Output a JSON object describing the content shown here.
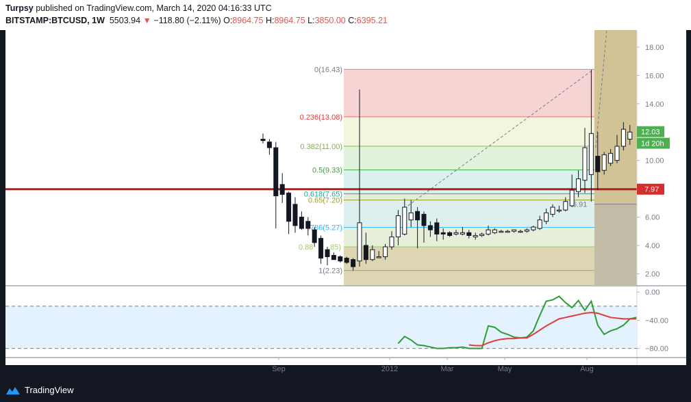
{
  "header": {
    "publisher": "Turpsy",
    "published_text": "published on TradingView.com, March 14, 2020 04:16:33 UTC",
    "symbol": "BITSTAMP:BTCUSD, 1W",
    "last": "5503.94",
    "change_arrow": "▼",
    "change": "−118.80 (−2.11%)",
    "o_label": "O:",
    "o_value": "8964.75",
    "h_label": "H:",
    "h_value": "8964.75",
    "l_label": "L:",
    "l_value": "3850.00",
    "c_label": "C:",
    "c_value": "6395.21"
  },
  "footer": {
    "brand": "TradingView",
    "brand_icon": "tradingview-logo-icon"
  },
  "colors": {
    "background": "#ffffff",
    "down_text": "#ef5350",
    "horizontal_line": "#b71c1c",
    "candle_up_fill": "#ffffff",
    "candle_down_fill": "#131722",
    "rsi_fast": "#2e9b3a",
    "rsi_slow": "#e53935",
    "rsi_band": "#e3f2fd",
    "price_label_green": "#4caf50",
    "price_label_red": "#d32f2f"
  },
  "chart_data": {
    "type": "candlestick",
    "timeframe": "1W",
    "x_tick_labels": [
      "Sep",
      "2012",
      "Mar",
      "May",
      "Aug"
    ],
    "price_axis": {
      "ylim": [
        1.2,
        19.2
      ],
      "tick_labels": [
        "2.00",
        "4.00",
        "6.00",
        "8.00",
        "10.00",
        "12.00",
        "14.00",
        "16.00",
        "18.00"
      ]
    },
    "candles": [
      {
        "o": 11.5,
        "h": 11.9,
        "l": 11.2,
        "c": 11.4
      },
      {
        "o": 11.3,
        "h": 11.5,
        "l": 10.4,
        "c": 10.9
      },
      {
        "o": 10.9,
        "h": 11.3,
        "l": 5.2,
        "c": 7.5
      },
      {
        "o": 8.3,
        "h": 9.1,
        "l": 7.0,
        "c": 7.6
      },
      {
        "o": 7.7,
        "h": 7.8,
        "l": 4.8,
        "c": 5.7
      },
      {
        "o": 6.9,
        "h": 7.4,
        "l": 4.9,
        "c": 5.4
      },
      {
        "o": 6.0,
        "h": 6.4,
        "l": 5.1,
        "c": 5.2
      },
      {
        "o": 5.7,
        "h": 6.0,
        "l": 4.7,
        "c": 5.2
      },
      {
        "o": 5.1,
        "h": 5.3,
        "l": 3.9,
        "c": 4.2
      },
      {
        "o": 4.5,
        "h": 4.7,
        "l": 2.7,
        "c": 3.1
      },
      {
        "o": 3.7,
        "h": 3.9,
        "l": 2.6,
        "c": 3.2
      },
      {
        "o": 3.3,
        "h": 3.5,
        "l": 3.0,
        "c": 3.0
      },
      {
        "o": 3.2,
        "h": 3.3,
        "l": 2.8,
        "c": 2.9
      },
      {
        "o": 3.1,
        "h": 3.2,
        "l": 2.7,
        "c": 2.8
      },
      {
        "o": 3.0,
        "h": 3.1,
        "l": 2.23,
        "c": 2.5
      },
      {
        "o": 2.9,
        "h": 15.0,
        "l": 2.5,
        "c": 5.6
      },
      {
        "o": 4.0,
        "h": 4.9,
        "l": 2.7,
        "c": 3.0
      },
      {
        "o": 3.0,
        "h": 4.0,
        "l": 2.9,
        "c": 3.7
      },
      {
        "o": 3.2,
        "h": 3.6,
        "l": 3.1,
        "c": 3.2
      },
      {
        "o": 3.2,
        "h": 4.1,
        "l": 3.0,
        "c": 3.9
      },
      {
        "o": 3.9,
        "h": 5.0,
        "l": 3.7,
        "c": 4.6
      },
      {
        "o": 4.6,
        "h": 6.5,
        "l": 4.0,
        "c": 6.1
      },
      {
        "o": 4.8,
        "h": 7.3,
        "l": 4.7,
        "c": 6.7
      },
      {
        "o": 5.8,
        "h": 7.2,
        "l": 5.3,
        "c": 6.3
      },
      {
        "o": 6.4,
        "h": 6.7,
        "l": 3.8,
        "c": 5.8
      },
      {
        "o": 6.2,
        "h": 6.4,
        "l": 4.2,
        "c": 5.4
      },
      {
        "o": 5.4,
        "h": 5.7,
        "l": 4.6,
        "c": 5.1
      },
      {
        "o": 5.6,
        "h": 5.9,
        "l": 4.3,
        "c": 4.8
      },
      {
        "o": 4.9,
        "h": 5.2,
        "l": 4.4,
        "c": 4.8
      },
      {
        "o": 4.9,
        "h": 5.0,
        "l": 4.6,
        "c": 4.7
      },
      {
        "o": 4.8,
        "h": 5.1,
        "l": 4.7,
        "c": 4.9
      },
      {
        "o": 4.8,
        "h": 5.3,
        "l": 4.7,
        "c": 4.9
      },
      {
        "o": 4.9,
        "h": 5.1,
        "l": 4.5,
        "c": 4.7
      },
      {
        "o": 4.6,
        "h": 4.9,
        "l": 4.4,
        "c": 4.7
      },
      {
        "o": 4.7,
        "h": 4.9,
        "l": 4.6,
        "c": 4.8
      },
      {
        "o": 4.8,
        "h": 5.4,
        "l": 4.7,
        "c": 5.1
      },
      {
        "o": 4.9,
        "h": 5.2,
        "l": 4.8,
        "c": 5.1
      },
      {
        "o": 5.0,
        "h": 5.1,
        "l": 4.9,
        "c": 5.0
      },
      {
        "o": 5.0,
        "h": 5.1,
        "l": 4.9,
        "c": 5.0
      },
      {
        "o": 5.0,
        "h": 5.1,
        "l": 4.9,
        "c": 5.1
      },
      {
        "o": 5.0,
        "h": 5.1,
        "l": 4.9,
        "c": 5.0
      },
      {
        "o": 5.0,
        "h": 5.2,
        "l": 4.9,
        "c": 5.1
      },
      {
        "o": 5.1,
        "h": 5.4,
        "l": 5.0,
        "c": 5.3
      },
      {
        "o": 5.2,
        "h": 6.1,
        "l": 5.1,
        "c": 5.8
      },
      {
        "o": 5.7,
        "h": 6.6,
        "l": 5.5,
        "c": 6.3
      },
      {
        "o": 6.2,
        "h": 6.9,
        "l": 6.0,
        "c": 6.7
      },
      {
        "o": 6.5,
        "h": 6.8,
        "l": 6.3,
        "c": 6.5
      },
      {
        "o": 6.5,
        "h": 7.4,
        "l": 6.4,
        "c": 7.1
      },
      {
        "o": 6.8,
        "h": 9.0,
        "l": 6.7,
        "c": 7.9
      },
      {
        "o": 7.8,
        "h": 9.3,
        "l": 7.4,
        "c": 8.7
      },
      {
        "o": 8.6,
        "h": 12.3,
        "l": 7.7,
        "c": 10.9
      },
      {
        "o": 9.0,
        "h": 16.4,
        "l": 7.1,
        "c": 11.9
      },
      {
        "o": 10.3,
        "h": 12.0,
        "l": 7.9,
        "c": 9.2
      },
      {
        "o": 9.3,
        "h": 10.6,
        "l": 9.0,
        "c": 10.4
      },
      {
        "o": 9.8,
        "h": 10.8,
        "l": 9.6,
        "c": 10.5
      },
      {
        "o": 10.0,
        "h": 11.8,
        "l": 9.8,
        "c": 11.0
      },
      {
        "o": 11.0,
        "h": 12.7,
        "l": 10.7,
        "c": 12.2
      },
      {
        "o": 11.5,
        "h": 12.5,
        "l": 11.1,
        "c": 12.0
      }
    ],
    "horizontal_line": {
      "value": 7.97,
      "label": "7.97"
    },
    "price_labels": [
      {
        "value": 12.03,
        "label": "12.03"
      },
      {
        "value": 11.0,
        "label": "1d 20h"
      }
    ],
    "fibonacci": {
      "levels": [
        {
          "label": "0(16.43)",
          "value": 16.43,
          "line_color": "#9e9e9e",
          "text_color": "#787b86"
        },
        {
          "label": "0.236(13.08)",
          "value": 13.08,
          "line_color": "#e57373",
          "text_color": "#e53935"
        },
        {
          "label": "0.382(11.00)",
          "value": 11.0,
          "line_color": "#8bc34a",
          "text_color": "#7cb342"
        },
        {
          "label": "0.5(9.33)",
          "value": 9.33,
          "line_color": "#4caf50",
          "text_color": "#43a047"
        },
        {
          "label": "0.618(7.65)",
          "value": 7.65,
          "line_color": "#26a69a",
          "text_color": "#26a69a"
        },
        {
          "label": "0.65(7.20)",
          "value": 7.2,
          "line_color": "#9e9d24",
          "text_color": "#9e9d24"
        },
        {
          "label": ".786(5.27)",
          "value": 5.27,
          "line_color": "#29b6f6",
          "text_color": "#29b6f6"
        },
        {
          "label": "0.88",
          "value": 3.9,
          "line_color": "#9ccc65",
          "text_color": "#9ccc65"
        },
        {
          "label": ".85)",
          "value": 3.9,
          "line_color": "#9ccc65",
          "text_color": "#9ccc65"
        },
        {
          "label": "1(2.23)",
          "value": 2.23,
          "line_color": "#9e9e9e",
          "text_color": "#787b86"
        }
      ],
      "zone_colors": [
        "#f4cccc",
        "#eef4d6",
        "#dcf1d6",
        "#d4f0ec",
        "#dde9d4",
        "#d7ecec",
        "#e2ecd2",
        "#d6cfa4"
      ],
      "region_overlay_label": "6.91",
      "region_overlay_value": 6.91
    },
    "oscillator": {
      "ylim": [
        -92,
        8
      ],
      "tick_labels": [
        "0.00",
        "−40.00",
        "−80.00"
      ],
      "band_values": [
        -20,
        -80
      ],
      "fast": [
        {
          "t": 21,
          "v": -73
        },
        {
          "t": 22,
          "v": -63
        },
        {
          "t": 23,
          "v": -68
        },
        {
          "t": 24,
          "v": -75
        },
        {
          "t": 25,
          "v": -76
        },
        {
          "t": 26,
          "v": -78
        },
        {
          "t": 27,
          "v": -80
        },
        {
          "t": 28,
          "v": -80
        },
        {
          "t": 29,
          "v": -79
        },
        {
          "t": 30,
          "v": -79
        },
        {
          "t": 31,
          "v": -78
        },
        {
          "t": 32,
          "v": -80
        },
        {
          "t": 33,
          "v": -80
        },
        {
          "t": 34,
          "v": -80
        },
        {
          "t": 35,
          "v": -48
        },
        {
          "t": 36,
          "v": -50
        },
        {
          "t": 37,
          "v": -57
        },
        {
          "t": 38,
          "v": -60
        },
        {
          "t": 39,
          "v": -64
        },
        {
          "t": 40,
          "v": -65
        },
        {
          "t": 41,
          "v": -64
        },
        {
          "t": 42,
          "v": -55
        },
        {
          "t": 43,
          "v": -33
        },
        {
          "t": 44,
          "v": -13
        },
        {
          "t": 45,
          "v": -11
        },
        {
          "t": 46,
          "v": -6
        },
        {
          "t": 47,
          "v": -15
        },
        {
          "t": 48,
          "v": -22
        },
        {
          "t": 49,
          "v": -12
        },
        {
          "t": 50,
          "v": -26
        },
        {
          "t": 51,
          "v": -13
        },
        {
          "t": 52,
          "v": -47
        },
        {
          "t": 53,
          "v": -60
        },
        {
          "t": 54,
          "v": -55
        },
        {
          "t": 55,
          "v": -52
        },
        {
          "t": 56,
          "v": -47
        },
        {
          "t": 57,
          "v": -38
        },
        {
          "t": 58,
          "v": -36
        }
      ],
      "slow": [
        {
          "t": 32,
          "v": -75
        },
        {
          "t": 33,
          "v": -76
        },
        {
          "t": 34,
          "v": -76
        },
        {
          "t": 35,
          "v": -72
        },
        {
          "t": 36,
          "v": -69
        },
        {
          "t": 37,
          "v": -67
        },
        {
          "t": 38,
          "v": -66
        },
        {
          "t": 39,
          "v": -66
        },
        {
          "t": 40,
          "v": -65
        },
        {
          "t": 41,
          "v": -65
        },
        {
          "t": 42,
          "v": -60
        },
        {
          "t": 43,
          "v": -54
        },
        {
          "t": 44,
          "v": -48
        },
        {
          "t": 45,
          "v": -43
        },
        {
          "t": 46,
          "v": -38
        },
        {
          "t": 47,
          "v": -36
        },
        {
          "t": 48,
          "v": -34
        },
        {
          "t": 49,
          "v": -32
        },
        {
          "t": 50,
          "v": -30
        },
        {
          "t": 51,
          "v": -29
        },
        {
          "t": 52,
          "v": -30
        },
        {
          "t": 53,
          "v": -33
        },
        {
          "t": 54,
          "v": -36
        },
        {
          "t": 55,
          "v": -37
        },
        {
          "t": 56,
          "v": -38
        },
        {
          "t": 57,
          "v": -38
        },
        {
          "t": 58,
          "v": -38
        }
      ]
    }
  }
}
